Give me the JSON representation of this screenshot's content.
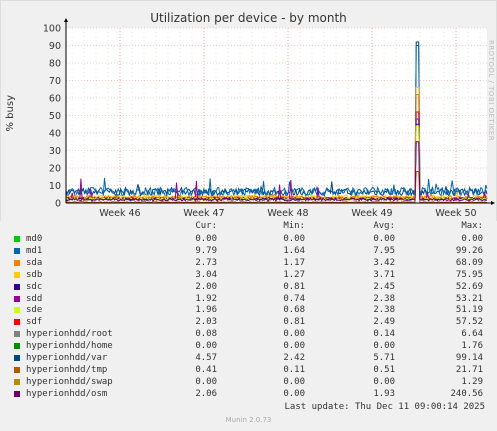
{
  "chart_data": {
    "type": "line",
    "title": "Utilization per device - by month",
    "ylabel": "% busy",
    "ylim": [
      0,
      100
    ],
    "yticks": [
      0,
      10,
      20,
      30,
      40,
      50,
      60,
      70,
      80,
      90,
      100
    ],
    "xticks": [
      "Week 46",
      "Week 47",
      "Week 48",
      "Week 49",
      "Week 50"
    ],
    "grid": true,
    "watermark": "RRDTOOL / TOBI OETIKER",
    "columns": [
      "Cur:",
      "Min:",
      "Avg:",
      "Max:"
    ],
    "series": [
      {
        "name": "md0",
        "color": "#00cc00",
        "cur": "0.00",
        "min": "0.00",
        "avg": "0.00",
        "max": "0.00"
      },
      {
        "name": "md1",
        "color": "#0066b3",
        "cur": "9.79",
        "min": "1.64",
        "avg": "7.95",
        "max": "99.26"
      },
      {
        "name": "sda",
        "color": "#ff8000",
        "cur": "2.73",
        "min": "1.17",
        "avg": "3.42",
        "max": "68.09"
      },
      {
        "name": "sdb",
        "color": "#ffcc00",
        "cur": "3.04",
        "min": "1.27",
        "avg": "3.71",
        "max": "75.95"
      },
      {
        "name": "sdc",
        "color": "#330099",
        "cur": "2.00",
        "min": "0.81",
        "avg": "2.45",
        "max": "52.69"
      },
      {
        "name": "sdd",
        "color": "#990099",
        "cur": "1.92",
        "min": "0.74",
        "avg": "2.38",
        "max": "53.21"
      },
      {
        "name": "sde",
        "color": "#ccff00",
        "cur": "1.96",
        "min": "0.68",
        "avg": "2.38",
        "max": "51.19"
      },
      {
        "name": "sdf",
        "color": "#ff0000",
        "cur": "2.03",
        "min": "0.81",
        "avg": "2.49",
        "max": "57.52"
      },
      {
        "name": "hyperionhdd/root",
        "color": "#808080",
        "cur": "0.08",
        "min": "0.00",
        "avg": "0.14",
        "max": "6.64"
      },
      {
        "name": "hyperionhdd/home",
        "color": "#008f00",
        "cur": "0.00",
        "min": "0.00",
        "avg": "0.00",
        "max": "1.76"
      },
      {
        "name": "hyperionhdd/var",
        "color": "#00487d",
        "cur": "4.57",
        "min": "2.42",
        "avg": "5.71",
        "max": "99.14"
      },
      {
        "name": "hyperionhdd/tmp",
        "color": "#b35a00",
        "cur": "0.41",
        "min": "0.11",
        "avg": "0.51",
        "max": "21.71"
      },
      {
        "name": "hyperionhdd/swap",
        "color": "#b38f00",
        "cur": "0.00",
        "min": "0.00",
        "avg": "0.00",
        "max": "1.29"
      },
      {
        "name": "hyperionhdd/osm",
        "color": "#6b006b",
        "cur": "2.06",
        "min": "0.00",
        "avg": "1.93",
        "max": "240.56"
      }
    ]
  },
  "footer": {
    "last_update": "Last update: Thu Dec 11 09:00:14 2025",
    "munin": "Munin 2.0.73"
  }
}
